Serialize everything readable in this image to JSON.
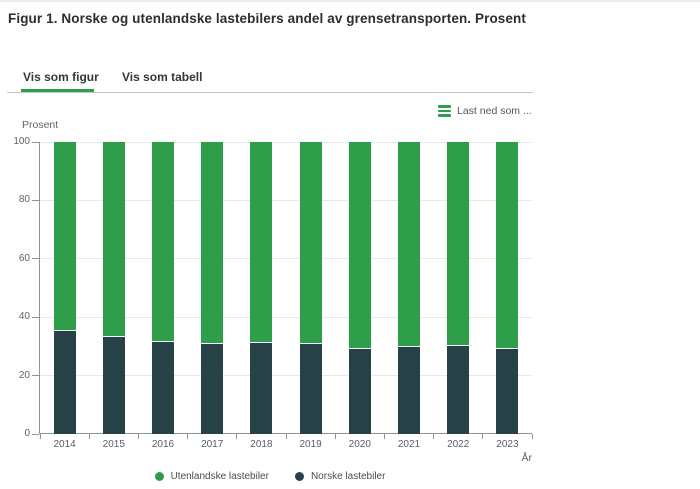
{
  "figure": {
    "title": "Figur 1. Norske og utenlandske lastebilers andel av grensetransporten. Prosent"
  },
  "tabs": [
    {
      "label": "Vis som figur",
      "active": true
    },
    {
      "label": "Vis som tabell",
      "active": false
    }
  ],
  "toolbar": {
    "download_label": "Last ned som ...",
    "menu_icon": "hamburger-icon"
  },
  "colors": {
    "green": "#2e9e4b",
    "dark": "#274247"
  },
  "chart_data": {
    "type": "bar",
    "stacked": true,
    "title": "Figur 1. Norske og utenlandske lastebilers andel av grensetransporten. Prosent",
    "categories": [
      "2014",
      "2015",
      "2016",
      "2017",
      "2018",
      "2019",
      "2020",
      "2021",
      "2022",
      "2023"
    ],
    "series": [
      {
        "name": "Utenlandske lastebiler",
        "color": "#2e9e4b",
        "values": [
          64.5,
          66.5,
          68,
          69,
          68.5,
          69,
          70.5,
          70,
          69.5,
          70.5
        ]
      },
      {
        "name": "Norske lastebiler",
        "color": "#274247",
        "values": [
          35.5,
          33.5,
          32,
          31,
          31.5,
          31,
          29.5,
          30,
          30.5,
          29.5
        ]
      }
    ],
    "xlabel": "År",
    "ylabel": "Prosent",
    "ylim": [
      0,
      100
    ],
    "yticks": [
      0,
      20,
      40,
      60,
      80,
      100
    ],
    "grid": true,
    "legend_position": "bottom"
  }
}
